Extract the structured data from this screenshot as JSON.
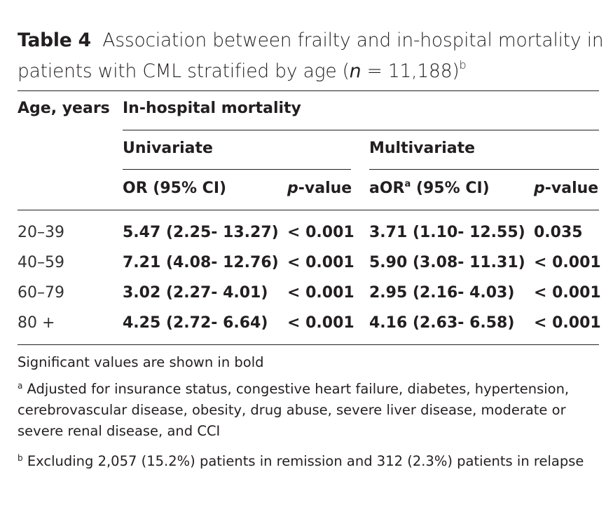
{
  "caption": {
    "label": "Table 4",
    "text_before_n": "Association between frailty and in-hospital mortality in patients with CML stratified by age (",
    "n_symbol": "n",
    "n_equals": " = 11,188)",
    "footnote_marker": "b"
  },
  "headers": {
    "age": "Age, years",
    "outcome": "In-hospital mortality",
    "univariate": "Univariate",
    "multivariate": "Multivariate",
    "or_ci": "OR (95% CI)",
    "p_value_italic": "p",
    "p_value_rest": "-value",
    "aor_prefix": "aOR",
    "aor_marker": "a",
    "aor_suffix": " (95% CI)",
    "p_value2_italic": "p",
    "p_value2_rest": "-value"
  },
  "rows": [
    {
      "age": "20–39",
      "or": "5.47 (2.25- 13.27)",
      "p": "< 0.001",
      "aor": "3.71 (1.10- 12.55)",
      "p2": "0.035"
    },
    {
      "age": "40–59",
      "or": "7.21 (4.08- 12.76)",
      "p": "< 0.001",
      "aor": "5.90 (3.08- 11.31)",
      "p2": "< 0.001"
    },
    {
      "age": "60–79",
      "or": "3.02 (2.27- 4.01)",
      "p": "< 0.001",
      "aor": "2.95 (2.16- 4.03)",
      "p2": "< 0.001"
    },
    {
      "age": "80 +",
      "or": "4.25 (2.72- 6.64)",
      "p": "< 0.001",
      "aor": "4.16 (2.63- 6.58)",
      "p2": "< 0.001"
    }
  ],
  "footnotes": {
    "bold_note": "Significant values are shown in bold",
    "a_marker": "a",
    "a_text": " Adjusted for insurance status, congestive heart failure, diabetes, hypertension, cerebrovascular disease, obesity, drug abuse, severe liver disease, moderate or severe renal disease, and CCI",
    "b_marker": "b",
    "b_text": " Excluding 2,057 (15.2%) patients in remission and 312 (2.3%) patients in relapse"
  }
}
